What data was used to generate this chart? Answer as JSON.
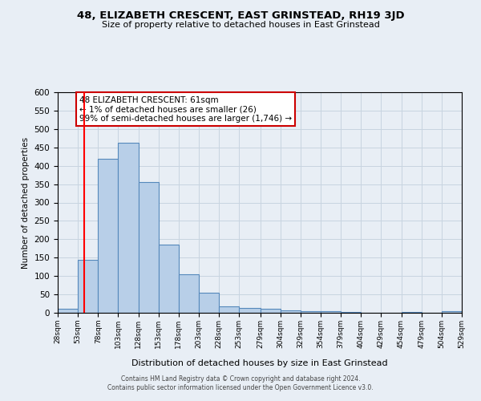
{
  "title": "48, ELIZABETH CRESCENT, EAST GRINSTEAD, RH19 3JD",
  "subtitle": "Size of property relative to detached houses in East Grinstead",
  "xlabel": "Distribution of detached houses by size in East Grinstead",
  "ylabel": "Number of detached properties",
  "bin_edges": [
    28,
    53,
    78,
    103,
    128,
    153,
    178,
    203,
    228,
    253,
    279,
    304,
    329,
    354,
    379,
    404,
    429,
    454,
    479,
    504,
    529
  ],
  "bar_heights": [
    10,
    143,
    418,
    463,
    355,
    185,
    105,
    55,
    18,
    13,
    10,
    6,
    4,
    5,
    3,
    0,
    0,
    3,
    0,
    4
  ],
  "bar_color": "#b8cfe8",
  "bar_edge_color": "#5588bb",
  "grid_color": "#c8d4e0",
  "background_color": "#e8eef5",
  "red_line_x": 61,
  "annotation_text": "48 ELIZABETH CRESCENT: 61sqm\n← 1% of detached houses are smaller (26)\n99% of semi-detached houses are larger (1,746) →",
  "annotation_box_color": "#ffffff",
  "annotation_box_edge_color": "#cc0000",
  "ylim": [
    0,
    600
  ],
  "yticks": [
    0,
    50,
    100,
    150,
    200,
    250,
    300,
    350,
    400,
    450,
    500,
    550,
    600
  ],
  "tick_labels": [
    "28sqm",
    "53sqm",
    "78sqm",
    "103sqm",
    "128sqm",
    "153sqm",
    "178sqm",
    "203sqm",
    "228sqm",
    "253sqm",
    "279sqm",
    "304sqm",
    "329sqm",
    "354sqm",
    "379sqm",
    "404sqm",
    "429sqm",
    "454sqm",
    "479sqm",
    "504sqm",
    "529sqm"
  ],
  "footer_line1": "Contains HM Land Registry data © Crown copyright and database right 2024.",
  "footer_line2": "Contains public sector information licensed under the Open Government Licence v3.0."
}
